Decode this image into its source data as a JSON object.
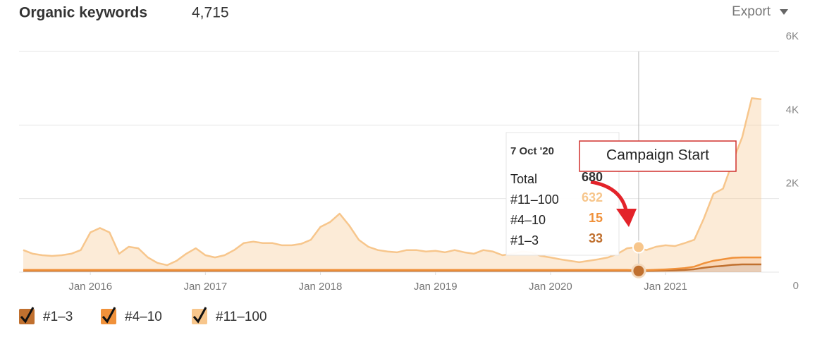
{
  "chart_data": {
    "type": "area",
    "stacked": true,
    "title": "Organic keywords",
    "subtitle": "4,715",
    "export": "Export",
    "x": [
      "2015-06",
      "2015-07",
      "2015-08",
      "2015-09",
      "2015-10",
      "2015-11",
      "2015-12",
      "2016-01",
      "2016-02",
      "2016-03",
      "2016-04",
      "2016-05",
      "2016-06",
      "2016-07",
      "2016-08",
      "2016-09",
      "2016-10",
      "2016-11",
      "2016-12",
      "2017-01",
      "2017-02",
      "2017-03",
      "2017-04",
      "2017-05",
      "2017-06",
      "2017-07",
      "2017-08",
      "2017-09",
      "2017-10",
      "2017-11",
      "2017-12",
      "2018-01",
      "2018-02",
      "2018-03",
      "2018-04",
      "2018-05",
      "2018-06",
      "2018-07",
      "2018-08",
      "2018-09",
      "2018-10",
      "2018-11",
      "2018-12",
      "2019-01",
      "2019-02",
      "2019-03",
      "2019-04",
      "2019-05",
      "2019-06",
      "2019-07",
      "2019-08",
      "2019-09",
      "2019-10",
      "2019-11",
      "2019-12",
      "2020-01",
      "2020-02",
      "2020-03",
      "2020-04",
      "2020-05",
      "2020-06",
      "2020-07",
      "2020-08",
      "2020-09",
      "2020-10",
      "2020-11",
      "2020-12",
      "2021-01",
      "2021-02",
      "2021-03",
      "2021-04",
      "2021-05",
      "2021-06",
      "2021-07",
      "2021-08",
      "2021-09",
      "2021-10",
      "2021-11"
    ],
    "series": [
      {
        "name": "#1–3",
        "color": "#c0702f",
        "values": [
          40,
          40,
          40,
          40,
          40,
          40,
          40,
          40,
          40,
          40,
          40,
          40,
          40,
          40,
          40,
          40,
          40,
          40,
          40,
          40,
          40,
          40,
          40,
          40,
          40,
          40,
          40,
          40,
          40,
          40,
          40,
          40,
          40,
          40,
          40,
          40,
          40,
          40,
          40,
          40,
          40,
          40,
          40,
          40,
          40,
          40,
          40,
          40,
          40,
          40,
          40,
          40,
          40,
          40,
          40,
          40,
          40,
          40,
          40,
          40,
          40,
          40,
          40,
          40,
          33,
          35,
          40,
          45,
          50,
          60,
          80,
          120,
          150,
          170,
          200,
          210,
          210,
          210
        ]
      },
      {
        "name": "#4–10",
        "color": "#f0913a",
        "values": [
          20,
          20,
          20,
          20,
          20,
          20,
          20,
          20,
          20,
          20,
          20,
          20,
          20,
          20,
          20,
          20,
          20,
          20,
          20,
          20,
          20,
          20,
          20,
          20,
          20,
          20,
          20,
          20,
          20,
          20,
          20,
          20,
          20,
          20,
          20,
          20,
          20,
          20,
          20,
          20,
          20,
          20,
          20,
          20,
          20,
          20,
          20,
          20,
          20,
          20,
          20,
          20,
          20,
          20,
          20,
          20,
          20,
          20,
          20,
          20,
          20,
          20,
          20,
          20,
          15,
          20,
          25,
          30,
          40,
          50,
          70,
          120,
          160,
          180,
          190,
          190,
          190,
          190
        ]
      },
      {
        "name": "#11–100",
        "color": "#f7c68c",
        "values": [
          540,
          440,
          400,
          380,
          400,
          440,
          540,
          1020,
          1140,
          1020,
          440,
          630,
          590,
          340,
          190,
          130,
          250,
          440,
          590,
          400,
          340,
          400,
          540,
          730,
          770,
          730,
          730,
          670,
          670,
          710,
          820,
          1170,
          1300,
          1530,
          1210,
          820,
          630,
          540,
          500,
          480,
          540,
          540,
          500,
          520,
          480,
          540,
          480,
          440,
          540,
          500,
          400,
          440,
          500,
          480,
          380,
          340,
          290,
          250,
          210,
          250,
          290,
          340,
          440,
          590,
          632,
          545,
          625,
          655,
          620,
          680,
          730,
          1220,
          1820,
          1920,
          2610,
          3270,
          4330,
          4300
        ]
      }
    ],
    "ylim": [
      0,
      6000
    ],
    "yticks": [
      0,
      {
        "value": 2000,
        "label": "2K"
      },
      {
        "value": 4000,
        "label": "4K"
      },
      {
        "value": 6000,
        "label": "6K"
      }
    ],
    "xticks": [
      {
        "value": "2016-01",
        "label": "Jan 2016"
      },
      {
        "value": "2017-01",
        "label": "Jan 2017"
      },
      {
        "value": "2018-01",
        "label": "Jan 2018"
      },
      {
        "value": "2019-01",
        "label": "Jan 2019"
      },
      {
        "value": "2020-01",
        "label": "Jan 2020"
      },
      {
        "value": "2021-01",
        "label": "Jan 2021"
      }
    ],
    "grid": true,
    "tooltip": {
      "date": "7 Oct '20",
      "rows": [
        {
          "label": "Total",
          "value": 680
        },
        {
          "label": "#11–100",
          "value": 632
        },
        {
          "label": "#4–10",
          "value": 15
        },
        {
          "label": "#1–3",
          "value": 33
        }
      ]
    },
    "annotations": [
      {
        "text": "Campaign Start"
      }
    ]
  }
}
